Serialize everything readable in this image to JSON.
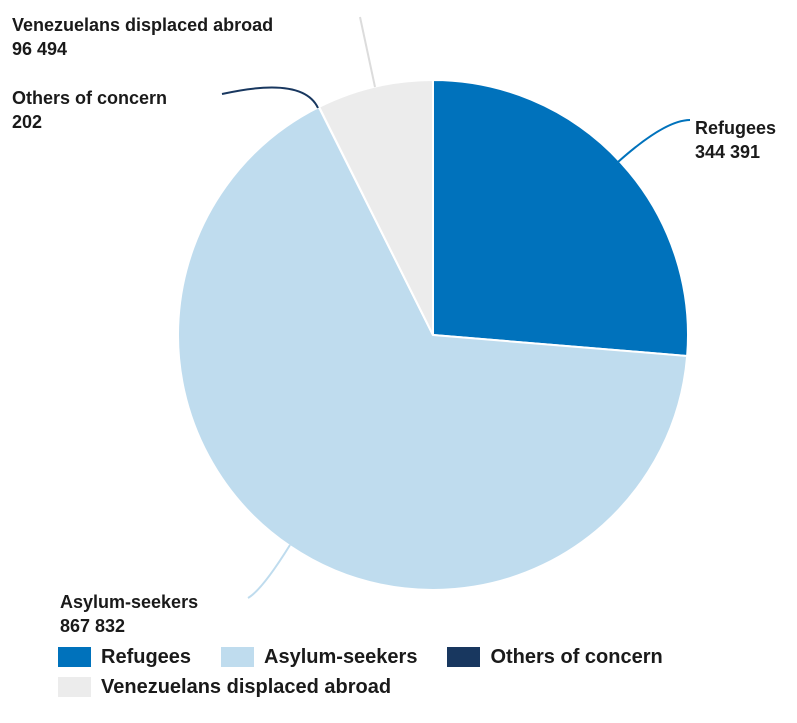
{
  "chart_data": {
    "type": "pie",
    "slices": [
      {
        "name": "Refugees",
        "value": 344391,
        "value_label": "344 391",
        "color": "#0072bc"
      },
      {
        "name": "Asylum-seekers",
        "value": 867832,
        "value_label": "867 832",
        "color": "#bfdcee"
      },
      {
        "name": "Others of concern",
        "value": 202,
        "value_label": "202",
        "color": "#18375f"
      },
      {
        "name": "Venezuelans displaced abroad",
        "value": 96494,
        "value_label": "96 494",
        "color": "#ececec"
      }
    ],
    "legend_position": "bottom-left"
  }
}
